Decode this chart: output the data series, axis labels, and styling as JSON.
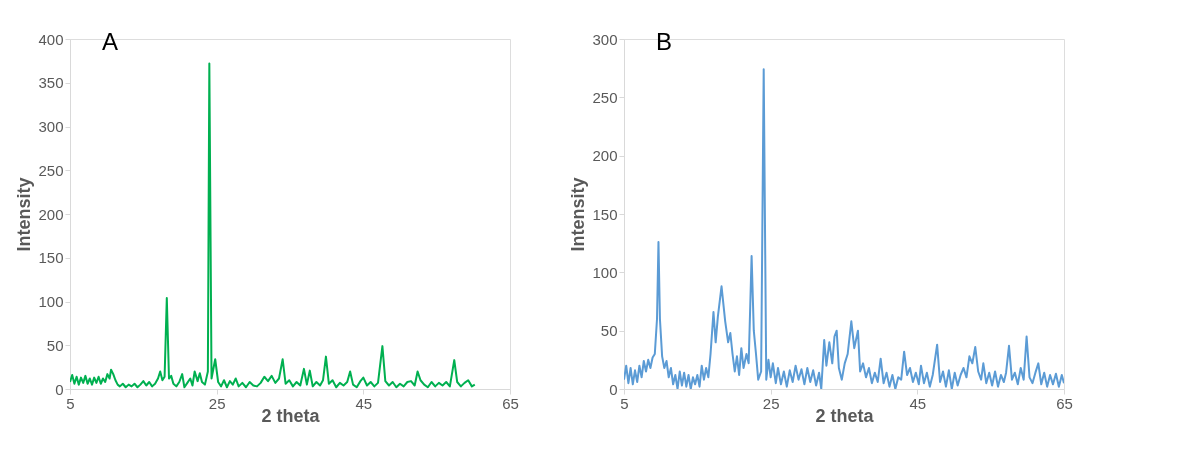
{
  "chart_data": [
    {
      "type": "line",
      "annotations": [
        "A"
      ],
      "xlabel": "2 theta",
      "ylabel": "Intensity",
      "xlim": [
        5,
        65
      ],
      "xticks": [
        5,
        25,
        45,
        65
      ],
      "ylim": [
        0,
        400
      ],
      "yticks": [
        0,
        50,
        100,
        150,
        200,
        250,
        300,
        350,
        400
      ],
      "series": [
        {
          "color": "#00b050",
          "x": [
            5,
            5.3,
            5.6,
            5.9,
            6.2,
            6.5,
            6.8,
            7.1,
            7.4,
            7.7,
            8,
            8.3,
            8.6,
            8.9,
            9.2,
            9.5,
            9.8,
            10.1,
            10.4,
            10.6,
            10.9,
            11.2,
            11.5,
            11.8,
            12.2,
            12.6,
            13,
            13.4,
            13.8,
            14.2,
            14.6,
            15,
            15.4,
            15.8,
            16.2,
            16.6,
            17,
            17.3,
            17.6,
            17.9,
            18.2,
            18.5,
            18.8,
            19.1,
            19.5,
            19.9,
            20.3,
            20.6,
            21,
            21.4,
            21.7,
            22,
            22.4,
            22.7,
            23,
            23.4,
            23.8,
            24.0,
            24.3,
            24.8,
            25.2,
            25.6,
            26,
            26.4,
            26.8,
            27.2,
            27.6,
            28,
            28.5,
            29,
            29.5,
            30,
            30.5,
            31,
            31.5,
            32,
            32.5,
            33,
            33.5,
            34.0,
            34.4,
            34.9,
            35.4,
            35.9,
            36.4,
            36.9,
            37.3,
            37.7,
            38.1,
            38.6,
            39.1,
            39.5,
            39.9,
            40.3,
            40.8,
            41.3,
            41.8,
            42.3,
            42.8,
            43.2,
            43.6,
            44.1,
            44.6,
            45,
            45.5,
            46,
            46.5,
            47,
            47.6,
            48,
            48.5,
            49,
            49.5,
            50,
            50.5,
            51,
            51.5,
            52,
            52.4,
            52.8,
            53.3,
            53.8,
            54.3,
            54.8,
            55.3,
            55.8,
            56.3,
            56.8,
            57.4,
            57.8,
            58.3,
            58.8,
            59.3,
            59.8,
            60.2
          ],
          "values": [
            8,
            16,
            6,
            14,
            5,
            13,
            7,
            15,
            6,
            12,
            5,
            13,
            7,
            14,
            6,
            12,
            8,
            17,
            12,
            22,
            17,
            10,
            5,
            3,
            6,
            2,
            5,
            3,
            6,
            2,
            5,
            9,
            4,
            8,
            3,
            6,
            12,
            20,
            10,
            14,
            104,
            12,
            15,
            6,
            3,
            8,
            17,
            2,
            7,
            12,
            4,
            20,
            9,
            18,
            8,
            5,
            20,
            372,
            12,
            34,
            8,
            3,
            10,
            2,
            9,
            5,
            12,
            3,
            7,
            2,
            8,
            4,
            3,
            7,
            14,
            9,
            15,
            7,
            12,
            34,
            6,
            10,
            3,
            8,
            4,
            23,
            5,
            21,
            3,
            8,
            4,
            10,
            37,
            6,
            10,
            2,
            7,
            4,
            8,
            20,
            5,
            2,
            9,
            13,
            4,
            8,
            3,
            7,
            49,
            9,
            4,
            8,
            2,
            6,
            3,
            8,
            9,
            4,
            20,
            10,
            5,
            2,
            8,
            3,
            7,
            4,
            8,
            3,
            33,
            8,
            3,
            7,
            10,
            3,
            5
          ]
        }
      ]
    },
    {
      "type": "line",
      "annotations": [
        "B"
      ],
      "xlabel": "2 theta",
      "ylabel": "Intensity",
      "xlim": [
        5,
        65
      ],
      "xticks": [
        5,
        25,
        45,
        65
      ],
      "ylim": [
        0,
        300
      ],
      "yticks": [
        0,
        50,
        100,
        150,
        200,
        250,
        300
      ],
      "series": [
        {
          "color": "#5b9bd5",
          "x": [
            5,
            5.3,
            5.6,
            5.9,
            6.2,
            6.5,
            6.8,
            7.1,
            7.4,
            7.7,
            8,
            8.3,
            8.6,
            8.9,
            9.2,
            9.5,
            9.7,
            9.9,
            10.2,
            10.5,
            10.8,
            11.1,
            11.4,
            11.7,
            12,
            12.3,
            12.6,
            12.9,
            13.2,
            13.5,
            13.8,
            14.1,
            14.4,
            14.7,
            15,
            15.3,
            15.6,
            15.9,
            16.2,
            16.5,
            16.8,
            17.2,
            17.5,
            17.8,
            18.3,
            18.8,
            19.2,
            19.5,
            19.8,
            20.1,
            20.4,
            20.7,
            21,
            21.3,
            21.7,
            22,
            22.4,
            22.7,
            23,
            23.3,
            23.7,
            24.05,
            24.4,
            24.7,
            25,
            25.3,
            25.7,
            26,
            26.4,
            26.8,
            27.2,
            27.6,
            28,
            28.4,
            28.8,
            29.2,
            29.6,
            30,
            30.4,
            30.8,
            31.2,
            31.6,
            31.9,
            32.3,
            32.6,
            33,
            33.4,
            33.7,
            34,
            34.3,
            34.7,
            35.1,
            35.5,
            36,
            36.4,
            36.9,
            37.2,
            37.6,
            38,
            38.4,
            38.8,
            39.2,
            39.6,
            40,
            40.4,
            40.8,
            41.2,
            41.6,
            42,
            42.4,
            42.8,
            43.2,
            43.6,
            44,
            44.4,
            44.8,
            45.2,
            45.5,
            45.9,
            46.3,
            46.7,
            47.1,
            47.7,
            48.1,
            48.5,
            48.9,
            49.3,
            49.7,
            50.1,
            50.5,
            50.9,
            51.3,
            51.7,
            52.1,
            52.5,
            52.9,
            53.3,
            53.7,
            54,
            54.4,
            54.8,
            55.2,
            55.6,
            56,
            56.4,
            56.8,
            57.1,
            57.5,
            57.9,
            58.3,
            58.7,
            59.1,
            59.5,
            59.9,
            60.3,
            60.7,
            61.1,
            61.5,
            61.9,
            62.3,
            62.7,
            63.1,
            63.5,
            63.9,
            64.3,
            64.7,
            65
          ],
          "values": [
            8,
            20,
            5,
            18,
            4,
            16,
            6,
            20,
            10,
            24,
            15,
            25,
            18,
            27,
            30,
            60,
            126,
            60,
            28,
            18,
            24,
            10,
            18,
            4,
            12,
            0,
            15,
            3,
            14,
            2,
            12,
            0,
            10,
            4,
            12,
            2,
            20,
            8,
            18,
            10,
            30,
            66,
            40,
            62,
            88,
            58,
            40,
            48,
            30,
            15,
            28,
            12,
            35,
            18,
            30,
            22,
            114,
            50,
            30,
            8,
            15,
            274,
            8,
            25,
            10,
            22,
            5,
            18,
            4,
            15,
            2,
            16,
            6,
            20,
            8,
            17,
            4,
            18,
            6,
            16,
            3,
            14,
            0,
            42,
            20,
            40,
            22,
            45,
            50,
            18,
            8,
            22,
            30,
            58,
            35,
            50,
            15,
            22,
            10,
            18,
            5,
            14,
            6,
            26,
            5,
            14,
            2,
            12,
            0,
            10,
            8,
            32,
            12,
            18,
            6,
            14,
            4,
            20,
            5,
            14,
            2,
            12,
            38,
            6,
            15,
            2,
            16,
            0,
            14,
            3,
            12,
            18,
            10,
            28,
            22,
            36,
            15,
            8,
            22,
            5,
            14,
            3,
            15,
            2,
            12,
            6,
            14,
            37,
            8,
            14,
            4,
            18,
            8,
            45,
            10,
            5,
            14,
            22,
            4,
            14,
            2,
            12,
            4,
            13,
            2,
            12,
            5
          ]
        }
      ]
    }
  ]
}
